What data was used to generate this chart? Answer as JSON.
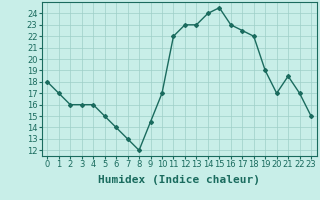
{
  "x": [
    0,
    1,
    2,
    3,
    4,
    5,
    6,
    7,
    8,
    9,
    10,
    11,
    12,
    13,
    14,
    15,
    16,
    17,
    18,
    19,
    20,
    21,
    22,
    23
  ],
  "y": [
    18,
    17,
    16,
    16,
    16,
    15,
    14,
    13,
    12,
    14.5,
    17,
    22,
    23,
    23,
    24,
    24.5,
    23,
    22.5,
    22,
    19,
    17,
    18.5,
    17,
    15
  ],
  "line_color": "#1a6b5e",
  "marker": "D",
  "marker_size": 2,
  "bg_color": "#c8eee8",
  "grid_color": "#9ecfc8",
  "xlabel": "Humidex (Indice chaleur)",
  "xlim": [
    -0.5,
    23.5
  ],
  "ylim": [
    11.5,
    25
  ],
  "yticks": [
    12,
    13,
    14,
    15,
    16,
    17,
    18,
    19,
    20,
    21,
    22,
    23,
    24
  ],
  "xticks": [
    0,
    1,
    2,
    3,
    4,
    5,
    6,
    7,
    8,
    9,
    10,
    11,
    12,
    13,
    14,
    15,
    16,
    17,
    18,
    19,
    20,
    21,
    22,
    23
  ],
  "tick_fontsize": 6,
  "xlabel_fontsize": 8,
  "tick_color": "#1a6b5e",
  "axis_color": "#1a6b5e",
  "linewidth": 1.0
}
